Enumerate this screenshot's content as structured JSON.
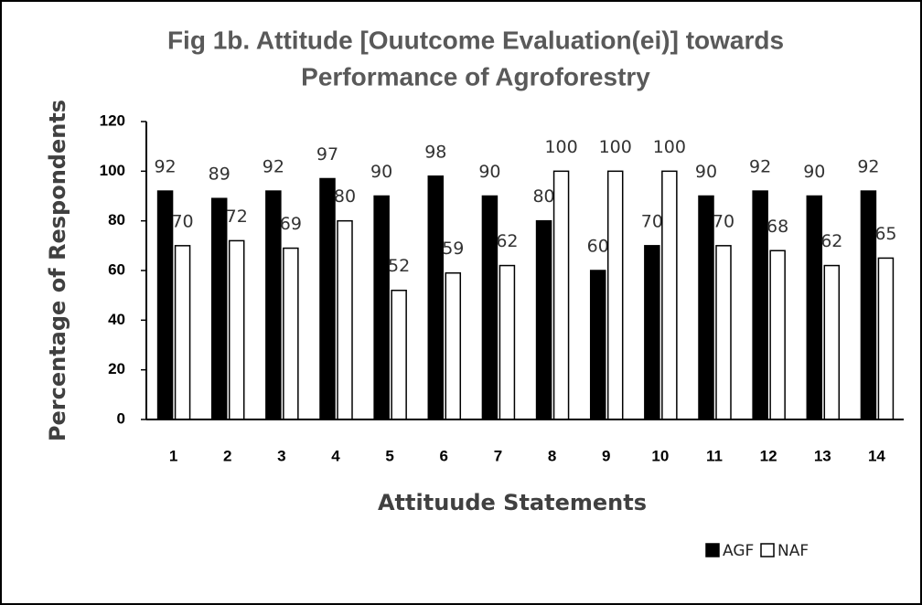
{
  "chart_data": {
    "type": "bar",
    "title": "Fig 1b. Attitude [Ouutcome Evaluation(ei)] towards",
    "title_line2": "Performance of Agroforestry",
    "x_label": "Attituude Statements",
    "y_label": "Percentage of Respondents",
    "categories": [
      "1",
      "2",
      "3",
      "4",
      "5",
      "6",
      "7",
      "8",
      "9",
      "10",
      "11",
      "12",
      "13",
      "14"
    ],
    "series": [
      {
        "name": "AGF",
        "color": "#000000",
        "values": [
          92,
          89,
          92,
          97,
          90,
          98,
          90,
          80,
          60,
          70,
          90,
          92,
          90,
          92
        ]
      },
      {
        "name": "NAF",
        "color": "#ffffff",
        "values": [
          70,
          72,
          69,
          80,
          52,
          59,
          62,
          100,
          100,
          100,
          70,
          68,
          62,
          65
        ]
      }
    ],
    "ylim": [
      0,
      120
    ],
    "yticks": [
      0,
      20,
      40,
      60,
      80,
      100,
      120
    ],
    "legend": "bottom-right"
  }
}
